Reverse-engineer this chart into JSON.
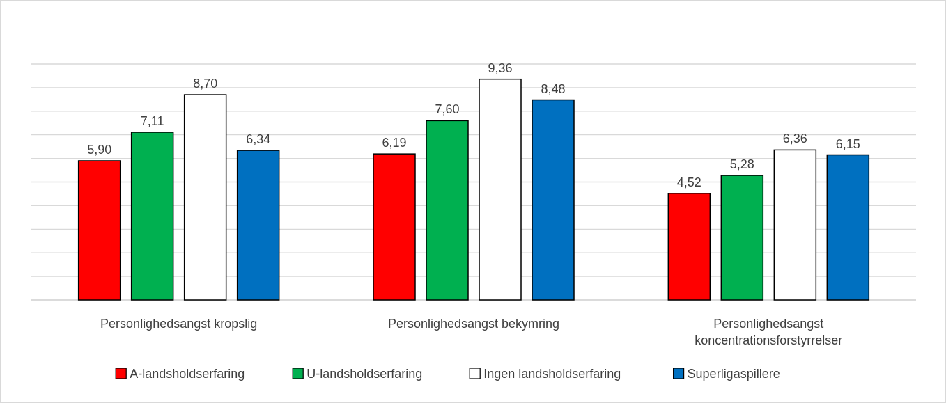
{
  "chart_data": {
    "type": "bar",
    "categories": [
      "Personlighedsangst kropslig",
      "Personlighedsangst bekymring",
      "Personlighedsangst koncentrationsforstyrrelser"
    ],
    "series": [
      {
        "name": "A-landsholdserfaring",
        "color": "#ff0000",
        "values": [
          5.9,
          6.19,
          4.52
        ],
        "value_labels": [
          "5,90",
          "6,19",
          "4,52"
        ]
      },
      {
        "name": "U-landsholdserfaring",
        "color": "#00b050",
        "values": [
          7.11,
          7.6,
          5.28
        ],
        "value_labels": [
          "7,11",
          "7,60",
          "5,28"
        ]
      },
      {
        "name": "Ingen landsholdserfaring",
        "color": "#ffffff",
        "values": [
          8.7,
          9.36,
          6.36
        ],
        "value_labels": [
          "8,70",
          "9,36",
          "6,36"
        ]
      },
      {
        "name": "Superligaspillere",
        "color": "#0070c0",
        "values": [
          6.34,
          8.48,
          6.15
        ],
        "value_labels": [
          "6,34",
          "8,48",
          "6,15"
        ]
      }
    ],
    "ylim": [
      0,
      10
    ],
    "yticks": [
      {
        "value": 0,
        "label": null
      },
      {
        "value": 1,
        "label": null
      },
      {
        "value": 2,
        "label": null
      },
      {
        "value": 3,
        "label": null
      },
      {
        "value": 4,
        "label": null
      },
      {
        "value": 5,
        "label": null
      },
      {
        "value": 6,
        "label": null
      },
      {
        "value": 7,
        "label": null
      },
      {
        "value": 8,
        "label": null
      },
      {
        "value": 9,
        "label": null
      },
      {
        "value": 10,
        "label": null
      }
    ],
    "grid": "y",
    "tick_labels": "x",
    "legend": "bottom"
  }
}
